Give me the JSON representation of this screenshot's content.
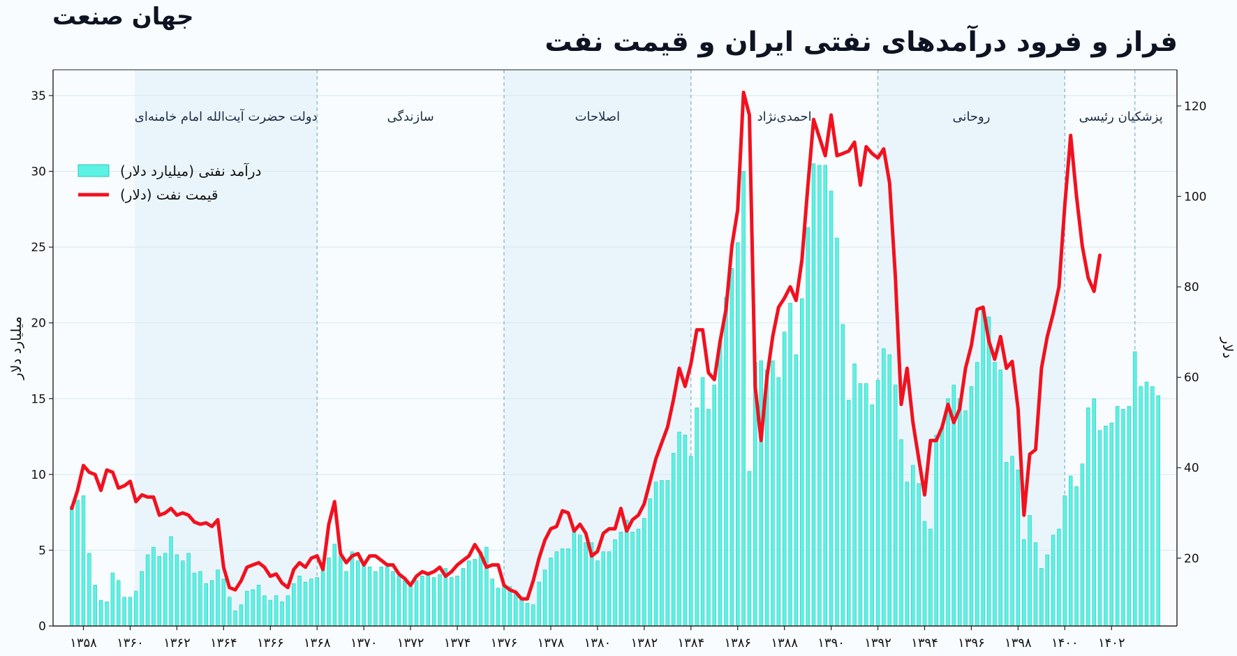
{
  "header": {
    "brand": "جهان صنعت",
    "title": "فراز و فرود درآمدهای نفتی ایران و قیمت نفت"
  },
  "colors": {
    "bar": "#5cf2e4",
    "bar_edge": "#2bc7bb",
    "line": "#f2111f",
    "divider": "#7fb0c8",
    "shade": "#eaf5fb"
  },
  "chart_data": {
    "type": "bar+line",
    "y_left": {
      "label": "میلیارد دلار",
      "lim": [
        0,
        36.7
      ],
      "ticks": [
        0,
        5,
        10,
        15,
        20,
        25,
        30,
        35
      ]
    },
    "y_right": {
      "label": "دلار",
      "lim": [
        5,
        128
      ],
      "ticks": [
        20,
        40,
        60,
        80,
        100,
        120
      ]
    },
    "x_axis": {
      "lim": [
        1356.7,
        1404.8
      ],
      "ticks": [
        {
          "value": 1358,
          "label": "۱۳۵۸"
        },
        {
          "value": 1360,
          "label": "۱۳۶۰"
        },
        {
          "value": 1362,
          "label": "۱۳۶۲"
        },
        {
          "value": 1364,
          "label": "۱۳۶۴"
        },
        {
          "value": 1366,
          "label": "۱۳۶۶"
        },
        {
          "value": 1368,
          "label": "۱۳۶۸"
        },
        {
          "value": 1370,
          "label": "۱۳۷۰"
        },
        {
          "value": 1372,
          "label": "۱۳۷۲"
        },
        {
          "value": 1374,
          "label": "۱۳۷۴"
        },
        {
          "value": 1376,
          "label": "۱۳۷۶"
        },
        {
          "value": 1378,
          "label": "۱۳۷۸"
        },
        {
          "value": 1380,
          "label": "۱۳۸۰"
        },
        {
          "value": 1382,
          "label": "۱۳۸۲"
        },
        {
          "value": 1384,
          "label": "۱۳۸۴"
        },
        {
          "value": 1386,
          "label": "۱۳۸۶"
        },
        {
          "value": 1388,
          "label": "۱۳۸۸"
        },
        {
          "value": 1390,
          "label": "۱۳۹۰"
        },
        {
          "value": 1392,
          "label": "۱۳۹۲"
        },
        {
          "value": 1394,
          "label": "۱۳۹۴"
        },
        {
          "value": 1396,
          "label": "۱۳۹۶"
        },
        {
          "value": 1398,
          "label": "۱۳۹۸"
        },
        {
          "value": 1400,
          "label": "۱۴۰۰"
        },
        {
          "value": 1402,
          "label": "۱۴۰۲"
        }
      ]
    },
    "legend": {
      "position": "upper-left",
      "items": [
        "درآمد نفتی (میلیارد دلار)",
        "قیمت نفت (دلار)"
      ]
    },
    "periods": [
      {
        "label": "دولت حضرت آیت‌الله امام خامنه‌ای",
        "start": 1360.2,
        "end": 1368.0,
        "shaded": true
      },
      {
        "label": "سازندگی",
        "start": 1368.0,
        "end": 1376.0,
        "shaded": false
      },
      {
        "label": "اصلاحات",
        "start": 1376.0,
        "end": 1384.0,
        "shaded": true
      },
      {
        "label": "احمدی‌نژاد",
        "start": 1384.0,
        "end": 1392.0,
        "shaded": false
      },
      {
        "label": "روحانی",
        "start": 1392.0,
        "end": 1400.0,
        "shaded": true
      },
      {
        "label": "پزشکیان رئیسی",
        "start": 1400.0,
        "end": 1404.8,
        "shaded": false
      }
    ],
    "divider_years": [
      1368.0,
      1376.0,
      1384.0,
      1392.0,
      1400.0,
      1403.0
    ],
    "series": [
      {
        "name": "درآمد نفتی (میلیارد دلار)",
        "kind": "bar",
        "axis": "left",
        "start_year": 1357.5,
        "step": 0.25,
        "values": [
          7.9,
          8.3,
          8.6,
          4.8,
          2.7,
          1.7,
          1.6,
          3.5,
          3.0,
          1.9,
          1.9,
          2.3,
          3.6,
          4.7,
          5.2,
          4.6,
          4.8,
          5.9,
          4.7,
          4.3,
          4.8,
          3.5,
          3.6,
          2.8,
          3.0,
          3.7,
          3.1,
          1.9,
          1.0,
          1.4,
          2.3,
          2.4,
          2.7,
          2.0,
          1.7,
          2.0,
          1.6,
          2.0,
          2.8,
          3.3,
          2.9,
          3.1,
          3.2,
          3.8,
          4.5,
          5.4,
          4.6,
          3.6,
          4.9,
          4.3,
          4.2,
          3.9,
          3.6,
          3.9,
          3.9,
          3.6,
          3.3,
          3.0,
          2.7,
          3.0,
          3.3,
          3.4,
          3.2,
          3.4,
          3.8,
          3.2,
          3.3,
          3.8,
          4.3,
          4.4,
          4.9,
          5.2,
          3.1,
          2.5,
          2.6,
          2.6,
          2.1,
          1.8,
          1.5,
          1.4,
          2.9,
          3.7,
          4.5,
          4.9,
          5.1,
          5.1,
          6.4,
          6.0,
          5.5,
          5.5,
          4.3,
          4.9,
          4.9,
          5.7,
          6.2,
          7.0,
          6.2,
          6.4,
          7.1,
          8.4,
          9.5,
          9.6,
          9.6,
          11.4,
          12.8,
          12.6,
          11.2,
          14.4,
          16.4,
          14.3,
          15.9,
          18.8,
          21.7,
          23.6,
          25.3,
          30.0,
          10.2,
          17.4,
          17.5,
          16.9,
          17.5,
          16.4,
          19.4,
          21.3,
          17.9,
          21.6,
          26.3,
          30.5,
          30.4,
          30.4,
          28.7,
          25.6,
          19.9,
          14.9,
          17.3,
          16.0,
          16.0,
          14.6,
          16.2,
          18.3,
          17.9,
          15.9,
          12.3,
          9.5,
          10.6,
          9.4,
          6.9,
          6.4,
          12.6,
          13.1,
          15.0,
          15.9,
          15.0,
          14.2,
          15.8,
          17.4,
          20.9,
          20.4,
          17.4,
          16.9,
          10.8,
          11.2,
          10.3,
          5.7,
          7.3,
          5.5,
          3.8,
          4.7,
          6.0,
          6.4,
          8.6,
          9.9,
          9.2,
          10.7,
          14.4,
          15.0,
          12.9,
          13.2,
          13.4,
          14.5,
          14.3,
          14.5,
          18.1,
          15.8,
          16.1,
          15.8,
          15.2
        ]
      },
      {
        "name": "قیمت نفت (دلار)",
        "kind": "line",
        "axis": "right",
        "points": [
          [
            1357.5,
            31
          ],
          [
            1357.75,
            35
          ],
          [
            1358.0,
            40.5
          ],
          [
            1358.25,
            39
          ],
          [
            1358.5,
            38.5
          ],
          [
            1358.75,
            35
          ],
          [
            1359.0,
            39.5
          ],
          [
            1359.25,
            39
          ],
          [
            1359.5,
            35.5
          ],
          [
            1359.75,
            36
          ],
          [
            1360.0,
            37
          ],
          [
            1360.25,
            32.5
          ],
          [
            1360.5,
            34
          ],
          [
            1360.75,
            33.5
          ],
          [
            1361.0,
            33.5
          ],
          [
            1361.25,
            29.5
          ],
          [
            1361.5,
            30
          ],
          [
            1361.75,
            31
          ],
          [
            1362.0,
            29.5
          ],
          [
            1362.25,
            30
          ],
          [
            1362.5,
            29.5
          ],
          [
            1362.75,
            28
          ],
          [
            1363.0,
            27.5
          ],
          [
            1363.25,
            27.8
          ],
          [
            1363.5,
            27
          ],
          [
            1363.75,
            28.5
          ],
          [
            1364.0,
            18
          ],
          [
            1364.25,
            13.5
          ],
          [
            1364.5,
            13
          ],
          [
            1364.75,
            15
          ],
          [
            1365.0,
            18
          ],
          [
            1365.25,
            18.5
          ],
          [
            1365.5,
            19
          ],
          [
            1365.75,
            18
          ],
          [
            1366.0,
            16
          ],
          [
            1366.25,
            16.5
          ],
          [
            1366.5,
            14.5
          ],
          [
            1366.75,
            13.5
          ],
          [
            1367.0,
            17.5
          ],
          [
            1367.25,
            19
          ],
          [
            1367.5,
            18
          ],
          [
            1367.75,
            20
          ],
          [
            1368.0,
            20.5
          ],
          [
            1368.25,
            17.5
          ],
          [
            1368.5,
            27.5
          ],
          [
            1368.75,
            32.5
          ],
          [
            1369.0,
            21
          ],
          [
            1369.25,
            19
          ],
          [
            1369.5,
            20.5
          ],
          [
            1369.75,
            21
          ],
          [
            1370.0,
            18.5
          ],
          [
            1370.25,
            20.5
          ],
          [
            1370.5,
            20.5
          ],
          [
            1370.75,
            19.5
          ],
          [
            1371.0,
            18.5
          ],
          [
            1371.25,
            18.5
          ],
          [
            1371.5,
            16.5
          ],
          [
            1371.75,
            15.5
          ],
          [
            1372.0,
            14
          ],
          [
            1372.25,
            16
          ],
          [
            1372.5,
            17
          ],
          [
            1372.75,
            16.5
          ],
          [
            1373.0,
            17
          ],
          [
            1373.25,
            18
          ],
          [
            1373.5,
            16
          ],
          [
            1373.75,
            17
          ],
          [
            1374.0,
            18.5
          ],
          [
            1374.25,
            19.5
          ],
          [
            1374.5,
            20.5
          ],
          [
            1374.75,
            23
          ],
          [
            1375.0,
            21
          ],
          [
            1375.25,
            18
          ],
          [
            1375.5,
            18.5
          ],
          [
            1375.75,
            18.5
          ],
          [
            1376.0,
            14
          ],
          [
            1376.25,
            13
          ],
          [
            1376.5,
            12.5
          ],
          [
            1376.75,
            11
          ],
          [
            1377.0,
            11
          ],
          [
            1377.25,
            15
          ],
          [
            1377.5,
            20
          ],
          [
            1377.75,
            24
          ],
          [
            1378.0,
            26.5
          ],
          [
            1378.25,
            27
          ],
          [
            1378.5,
            30.5
          ],
          [
            1378.75,
            30
          ],
          [
            1379.0,
            26
          ],
          [
            1379.25,
            27.5
          ],
          [
            1379.5,
            25.5
          ],
          [
            1379.75,
            20.5
          ],
          [
            1380.0,
            21.5
          ],
          [
            1380.25,
            25.5
          ],
          [
            1380.5,
            26.5
          ],
          [
            1380.75,
            26.5
          ],
          [
            1381.0,
            31
          ],
          [
            1381.25,
            26
          ],
          [
            1381.5,
            28.5
          ],
          [
            1381.75,
            29.5
          ],
          [
            1382.0,
            32
          ],
          [
            1382.25,
            37
          ],
          [
            1382.5,
            42
          ],
          [
            1382.75,
            45.5
          ],
          [
            1383.0,
            49
          ],
          [
            1383.25,
            55
          ],
          [
            1383.5,
            62
          ],
          [
            1383.75,
            58
          ],
          [
            1384.0,
            63
          ],
          [
            1384.25,
            70.5
          ],
          [
            1384.5,
            70.5
          ],
          [
            1384.75,
            61
          ],
          [
            1385.0,
            59.5
          ],
          [
            1385.25,
            68
          ],
          [
            1385.5,
            75
          ],
          [
            1385.75,
            89
          ],
          [
            1386.0,
            97
          ],
          [
            1386.25,
            123
          ],
          [
            1386.5,
            118
          ],
          [
            1386.75,
            58
          ],
          [
            1387.0,
            46
          ],
          [
            1387.25,
            60
          ],
          [
            1387.5,
            69
          ],
          [
            1387.75,
            75.5
          ],
          [
            1388.0,
            77.5
          ],
          [
            1388.25,
            80
          ],
          [
            1388.5,
            77
          ],
          [
            1388.75,
            86
          ],
          [
            1389.0,
            102
          ],
          [
            1389.25,
            117
          ],
          [
            1389.5,
            113
          ],
          [
            1389.75,
            109
          ],
          [
            1390.0,
            118
          ],
          [
            1390.25,
            109
          ],
          [
            1390.5,
            109.5
          ],
          [
            1390.75,
            110
          ],
          [
            1391.0,
            112
          ],
          [
            1391.25,
            102.5
          ],
          [
            1391.5,
            111
          ],
          [
            1391.75,
            109.5
          ],
          [
            1392.0,
            108.5
          ],
          [
            1392.25,
            110.5
          ],
          [
            1392.5,
            103
          ],
          [
            1392.75,
            82
          ],
          [
            1393.0,
            54
          ],
          [
            1393.25,
            62
          ],
          [
            1393.5,
            50
          ],
          [
            1393.75,
            42
          ],
          [
            1394.0,
            34
          ],
          [
            1394.25,
            46
          ],
          [
            1394.5,
            46
          ],
          [
            1394.75,
            49
          ],
          [
            1395.0,
            54
          ],
          [
            1395.25,
            50
          ],
          [
            1395.5,
            53
          ],
          [
            1395.75,
            62
          ],
          [
            1396.0,
            67
          ],
          [
            1396.25,
            75
          ],
          [
            1396.5,
            75.5
          ],
          [
            1396.75,
            68
          ],
          [
            1397.0,
            64
          ],
          [
            1397.25,
            69
          ],
          [
            1397.5,
            62
          ],
          [
            1397.75,
            63.5
          ],
          [
            1398.0,
            53
          ],
          [
            1398.25,
            29.5
          ],
          [
            1398.5,
            43
          ],
          [
            1398.75,
            44
          ],
          [
            1399.0,
            62
          ],
          [
            1399.25,
            69
          ],
          [
            1399.5,
            74
          ],
          [
            1399.75,
            80
          ],
          [
            1400.0,
            98
          ],
          [
            1400.25,
            113.5
          ],
          [
            1400.5,
            100
          ],
          [
            1400.75,
            89
          ],
          [
            1401.0,
            82
          ],
          [
            1401.25,
            79
          ],
          [
            1401.5,
            87
          ]
        ]
      }
    ]
  }
}
